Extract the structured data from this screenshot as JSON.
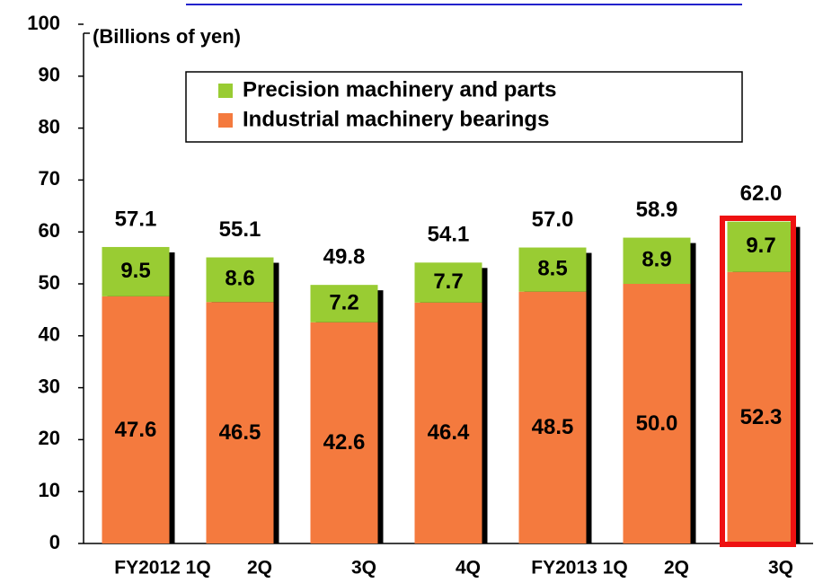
{
  "chart_data": {
    "type": "stacked_bar",
    "y_label": "(Billions of yen)",
    "categories": [
      "FY2012 1Q",
      "2Q",
      "3Q",
      "4Q",
      "FY2013 1Q",
      "2Q",
      "3Q"
    ],
    "series": [
      {
        "name": "Industrial machinery bearings",
        "color": "#f47a3e",
        "values": [
          47.6,
          46.5,
          42.6,
          46.4,
          48.5,
          50.0,
          52.3
        ],
        "value_labels": [
          "47.6",
          "46.5",
          "42.6",
          "46.4",
          "48.5",
          "50.0",
          "52.3"
        ]
      },
      {
        "name": "Precision machinery and parts",
        "color": "#99cc33",
        "values": [
          9.5,
          8.6,
          7.2,
          7.7,
          8.5,
          8.9,
          9.7
        ]
      }
    ],
    "totals": [
      57.1,
      55.1,
      49.8,
      54.1,
      57.0,
      58.9,
      62.0
    ],
    "total_labels": [
      "57.1",
      "55.1",
      "49.8",
      "54.1",
      "57.0",
      "58.9",
      "62.0"
    ],
    "ylim": [
      0,
      100
    ],
    "yticks": [
      0,
      10,
      20,
      30,
      40,
      50,
      60,
      70,
      80,
      90,
      100
    ],
    "grid": false
  }
}
